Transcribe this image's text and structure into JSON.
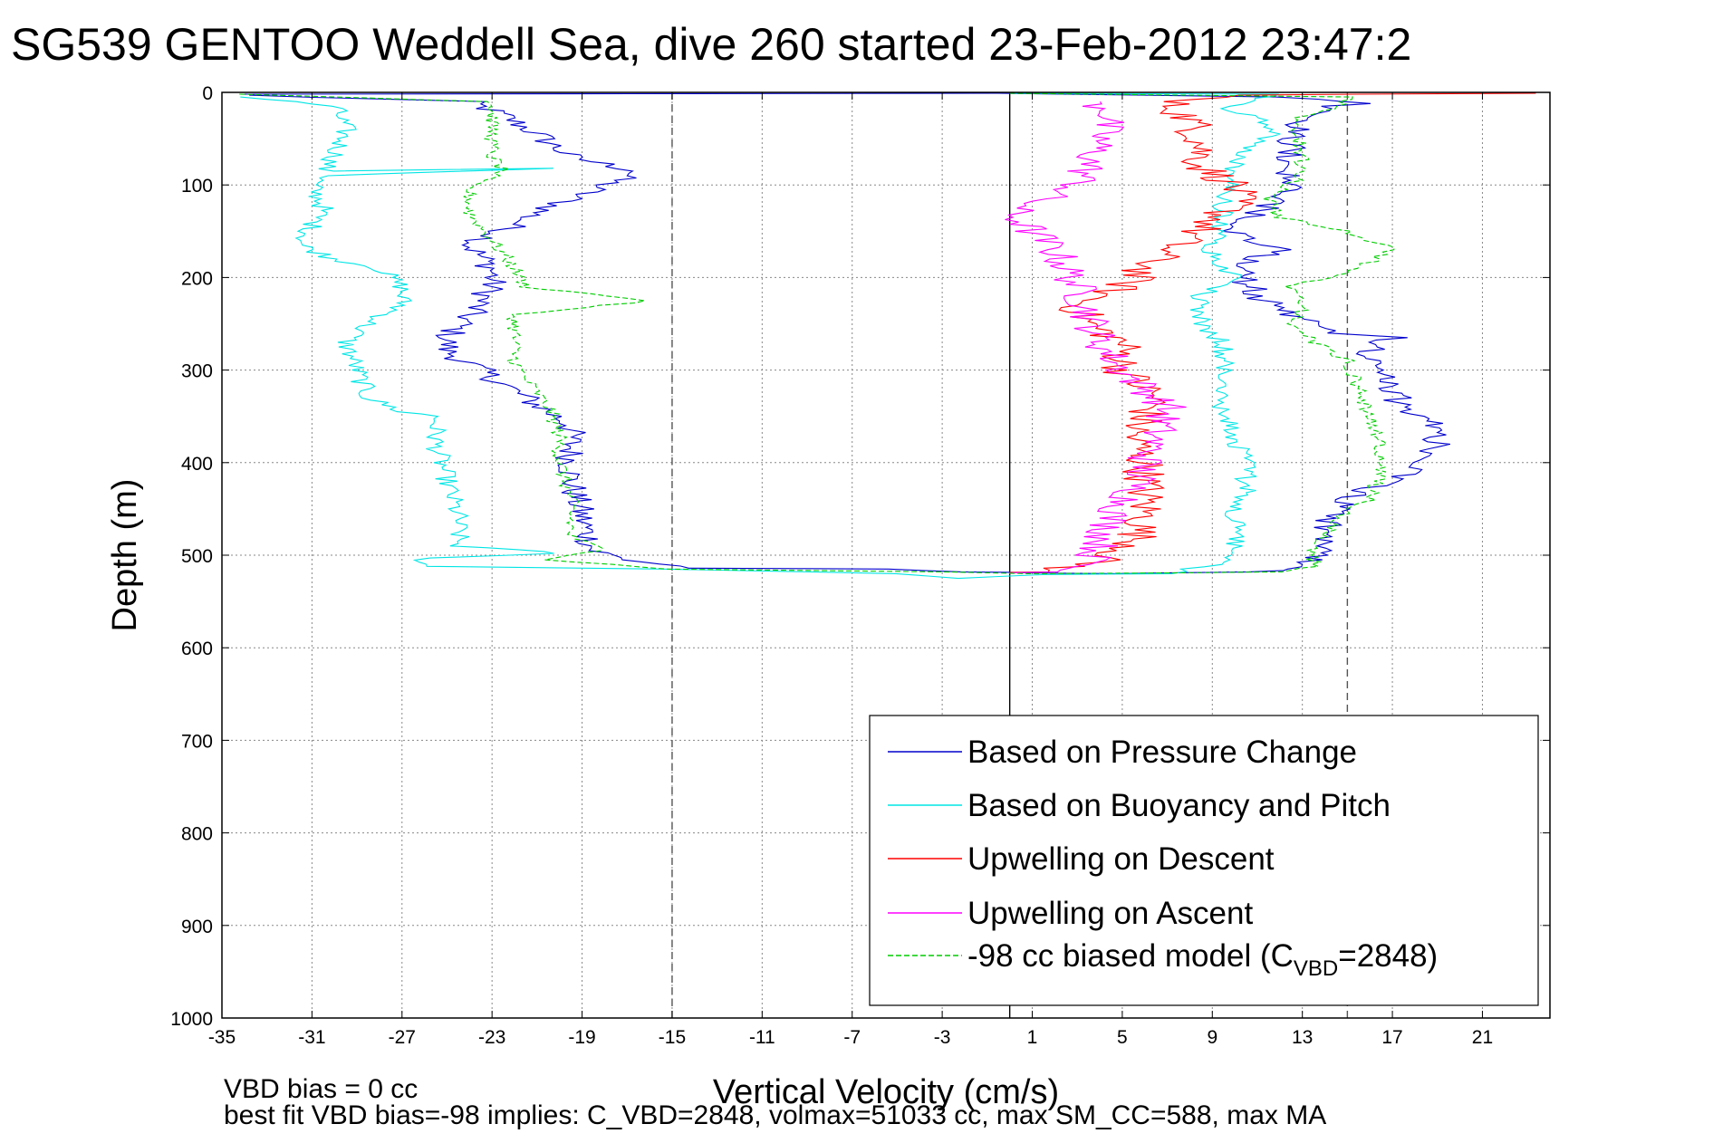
{
  "chart_data": {
    "type": "line",
    "title": "SG539 GENTOO Weddell Sea, dive 260 started 23-Feb-2012 23:47:2",
    "xlabel": "Vertical Velocity (cm/s)",
    "ylabel": "Depth (m)",
    "xlim": [
      -35,
      24
    ],
    "ylim": [
      0,
      1000
    ],
    "y_reversed": true,
    "grid": true,
    "x_ticks": [
      "-35",
      "-31",
      "-27",
      "-23",
      "-19",
      "-15",
      "-11",
      "-7",
      "-3",
      "1",
      "5",
      "9",
      "13",
      "17",
      "21"
    ],
    "x_tick_values": [
      -35,
      -31,
      -27,
      -23,
      -19,
      -15,
      -11,
      -7,
      -3,
      1,
      5,
      9,
      13,
      17,
      21
    ],
    "y_ticks": [
      "0",
      "100",
      "200",
      "300",
      "400",
      "500",
      "600",
      "700",
      "800",
      "900",
      "1000"
    ],
    "y_tick_values": [
      0,
      100,
      200,
      300,
      400,
      500,
      600,
      700,
      800,
      900,
      1000
    ],
    "reference_lines": [
      {
        "x": -15,
        "style": "dashed",
        "color": "#555555"
      },
      {
        "x": 0,
        "style": "solid",
        "color": "#000000"
      },
      {
        "x": 15,
        "style": "dashed",
        "color": "#555555"
      }
    ],
    "legend": {
      "placement": "bottom-right",
      "entries": [
        {
          "label": "Based on Pressure Change",
          "color": "#0000cc",
          "style": "solid"
        },
        {
          "label": "Based on Buoyancy and Pitch",
          "color": "#00e5e5",
          "style": "solid"
        },
        {
          "label": "Upwelling on Descent",
          "color": "#ff0000",
          "style": "solid"
        },
        {
          "label": "Upwelling on Ascent",
          "color": "#ff00ff",
          "style": "solid"
        },
        {
          "label": "-98 cc biased model (C",
          "sub": "VBD",
          "suffix": "=2848)",
          "color": "#00cc00",
          "style": "dashed"
        }
      ]
    },
    "series": [
      {
        "color": "#0000cc",
        "style": "solid",
        "jitter": 0.7,
        "points": [
          [
            -34,
            3
          ],
          [
            -24,
            10
          ],
          [
            -22.5,
            25
          ],
          [
            -21,
            45
          ],
          [
            -19.5,
            70
          ],
          [
            -16.5,
            85
          ],
          [
            -19,
            110
          ],
          [
            -21,
            130
          ],
          [
            -22.5,
            150
          ],
          [
            -24,
            165
          ],
          [
            -23,
            190
          ],
          [
            -23,
            210
          ],
          [
            -24,
            240
          ],
          [
            -25,
            265
          ],
          [
            -25,
            280
          ],
          [
            -23.5,
            300
          ],
          [
            -21.5,
            330
          ],
          [
            -19.5,
            360
          ],
          [
            -19.5,
            380
          ],
          [
            -19.5,
            420
          ],
          [
            -19,
            460
          ],
          [
            -18.5,
            495
          ],
          [
            -17,
            505
          ],
          [
            -14,
            514
          ],
          [
            -6,
            515
          ],
          [
            -2,
            518
          ],
          [
            1,
            519
          ],
          [
            5,
            520
          ],
          [
            10,
            518
          ],
          [
            13,
            515
          ],
          [
            13.5,
            500
          ],
          [
            14,
            475
          ],
          [
            14.5,
            450
          ],
          [
            15.5,
            430
          ],
          [
            17,
            420
          ],
          [
            18.5,
            400
          ],
          [
            19,
            380
          ],
          [
            19,
            360
          ],
          [
            17.5,
            340
          ],
          [
            16.5,
            310
          ],
          [
            16,
            280
          ],
          [
            17,
            265
          ],
          [
            14,
            260
          ],
          [
            12.5,
            240
          ],
          [
            11,
            220
          ],
          [
            10,
            190
          ],
          [
            12,
            170
          ],
          [
            10,
            150
          ],
          [
            11,
            130
          ],
          [
            12.5,
            110
          ],
          [
            12.5,
            90
          ],
          [
            12.5,
            70
          ],
          [
            12.5,
            45
          ],
          [
            13,
            30
          ],
          [
            14.5,
            15
          ],
          [
            15.5,
            12
          ],
          [
            12,
            5
          ],
          [
            0,
            1
          ],
          [
            -34,
            2
          ]
        ]
      },
      {
        "color": "#00e5e5",
        "style": "solid",
        "jitter": 0.5,
        "points": [
          [
            -34,
            5
          ],
          [
            -30,
            15
          ],
          [
            -29.5,
            40
          ],
          [
            -30,
            70
          ],
          [
            -30.5,
            85
          ],
          [
            -20,
            82
          ],
          [
            -30.5,
            90
          ],
          [
            -31,
            100
          ],
          [
            -30.5,
            125
          ],
          [
            -31,
            145
          ],
          [
            -31.5,
            165
          ],
          [
            -30,
            180
          ],
          [
            -28,
            190
          ],
          [
            -27,
            210
          ],
          [
            -27,
            230
          ],
          [
            -28.5,
            250
          ],
          [
            -29.5,
            270
          ],
          [
            -29,
            300
          ],
          [
            -28.5,
            330
          ],
          [
            -27,
            345
          ],
          [
            -25.5,
            350
          ],
          [
            -25.5,
            380
          ],
          [
            -25,
            420
          ],
          [
            -24.5,
            460
          ],
          [
            -24.5,
            490
          ],
          [
            -20,
            498
          ],
          [
            -26,
            503
          ],
          [
            -26,
            512
          ],
          [
            -15,
            515
          ],
          [
            -5,
            520
          ],
          [
            -2,
            525
          ],
          [
            1,
            521
          ],
          [
            7,
            520
          ],
          [
            9,
            510
          ],
          [
            10,
            500
          ],
          [
            10,
            470
          ],
          [
            10,
            445
          ],
          [
            10.5,
            430
          ],
          [
            10.5,
            400
          ],
          [
            10,
            370
          ],
          [
            9.5,
            340
          ],
          [
            9.5,
            300
          ],
          [
            9.5,
            270
          ],
          [
            8.5,
            250
          ],
          [
            8.5,
            220
          ],
          [
            10,
            200
          ],
          [
            9,
            170
          ],
          [
            9.5,
            140
          ],
          [
            9.5,
            110
          ],
          [
            10,
            90
          ],
          [
            10,
            70
          ],
          [
            12,
            40
          ],
          [
            9.5,
            15
          ],
          [
            12,
            2
          ],
          [
            0,
            1
          ]
        ]
      },
      {
        "color": "#ff0000",
        "style": "solid",
        "jitter": 1.0,
        "points": [
          [
            23,
            1
          ],
          [
            10,
            3
          ],
          [
            7,
            10
          ],
          [
            8,
            30
          ],
          [
            8.5,
            50
          ],
          [
            8.5,
            80
          ],
          [
            10,
            100
          ],
          [
            10,
            120
          ],
          [
            9,
            140
          ],
          [
            7,
            170
          ],
          [
            6,
            190
          ],
          [
            5,
            210
          ],
          [
            3,
            230
          ],
          [
            3.5,
            250
          ],
          [
            5,
            270
          ],
          [
            5,
            300
          ],
          [
            6.5,
            330
          ],
          [
            6,
            350
          ],
          [
            5.5,
            370
          ],
          [
            6,
            400
          ],
          [
            6,
            430
          ],
          [
            6,
            460
          ],
          [
            5.5,
            490
          ],
          [
            4,
            505
          ],
          [
            3,
            512
          ],
          [
            1,
            518
          ],
          [
            0,
            519
          ]
        ]
      },
      {
        "color": "#ff00ff",
        "style": "solid",
        "jitter": 0.9,
        "points": [
          [
            3.5,
            10
          ],
          [
            4.5,
            20
          ],
          [
            4,
            50
          ],
          [
            3.5,
            80
          ],
          [
            3,
            100
          ],
          [
            1,
            120
          ],
          [
            0,
            130
          ],
          [
            1,
            150
          ],
          [
            2,
            170
          ],
          [
            2.5,
            190
          ],
          [
            3,
            210
          ],
          [
            3.5,
            240
          ],
          [
            4,
            270
          ],
          [
            5,
            300
          ],
          [
            6,
            320
          ],
          [
            7,
            340
          ],
          [
            6.5,
            370
          ],
          [
            6,
            400
          ],
          [
            5.5,
            430
          ],
          [
            4.5,
            460
          ],
          [
            4,
            490
          ],
          [
            3.5,
            510
          ],
          [
            2,
            518
          ],
          [
            0,
            520
          ]
        ]
      },
      {
        "color": "#00cc00",
        "style": "dashed",
        "jitter": 0.35,
        "points": [
          [
            -34,
            2
          ],
          [
            -23,
            10
          ],
          [
            -23,
            40
          ],
          [
            -23,
            70
          ],
          [
            -22.5,
            85
          ],
          [
            -24,
            100
          ],
          [
            -24,
            130
          ],
          [
            -23,
            160
          ],
          [
            -22,
            190
          ],
          [
            -21.5,
            210
          ],
          [
            -16,
            225
          ],
          [
            -22,
            240
          ],
          [
            -22,
            260
          ],
          [
            -22,
            290
          ],
          [
            -21.5,
            310
          ],
          [
            -20.5,
            340
          ],
          [
            -20,
            370
          ],
          [
            -20,
            400
          ],
          [
            -19.5,
            440
          ],
          [
            -19.5,
            480
          ],
          [
            -18,
            495
          ],
          [
            -20.5,
            505
          ],
          [
            -15,
            515
          ],
          [
            -3,
            518
          ],
          [
            1,
            520
          ],
          [
            8,
            519
          ],
          [
            12,
            518
          ],
          [
            13.5,
            512
          ],
          [
            13.5,
            495
          ],
          [
            14.5,
            460
          ],
          [
            16,
            440
          ],
          [
            16.5,
            410
          ],
          [
            16.5,
            380
          ],
          [
            16,
            350
          ],
          [
            15.5,
            320
          ],
          [
            15,
            290
          ],
          [
            12.5,
            255
          ],
          [
            13,
            230
          ],
          [
            12.5,
            210
          ],
          [
            15.5,
            190
          ],
          [
            17,
            170
          ],
          [
            15,
            150
          ],
          [
            12,
            135
          ],
          [
            11.5,
            115
          ],
          [
            13,
            90
          ],
          [
            13,
            60
          ],
          [
            12.5,
            30
          ],
          [
            14.5,
            15
          ],
          [
            15,
            5
          ],
          [
            0,
            1
          ]
        ]
      }
    ]
  },
  "footer": {
    "line1": "VBD bias = 0 cc",
    "line2": "best fit VBD bias=-98 implies: C_VBD=2848, volmax=51033 cc, max SM_CC=588, max MA"
  }
}
